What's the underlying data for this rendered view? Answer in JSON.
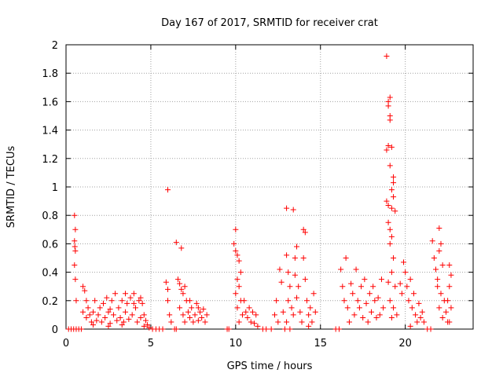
{
  "chart_data": {
    "type": "scatter",
    "title": "Day 167 of 2017, SRMTID for receiver crat",
    "xlabel": "GPS time / hours",
    "ylabel": "SRMTID / TECUs",
    "xlim": [
      0,
      24
    ],
    "ylim": [
      0,
      2
    ],
    "xticks": [
      0,
      5,
      10,
      15,
      20
    ],
    "xtick_labels": [
      "0",
      "5",
      "10",
      "15",
      "20"
    ],
    "yticks": [
      0,
      0.2,
      0.4,
      0.6,
      0.8,
      1,
      1.2,
      1.4,
      1.6,
      1.8,
      2
    ],
    "ytick_labels": [
      "0",
      "0.2",
      "0.4",
      "0.6",
      "0.8",
      "1",
      "1.2",
      "1.4",
      "1.6",
      "1.8",
      "2"
    ],
    "grid": true,
    "marker": "plus",
    "color": "#ff0000",
    "series": [
      {
        "name": "SRMTID",
        "points": [
          [
            0.15,
            0.0
          ],
          [
            0.3,
            0.0
          ],
          [
            0.45,
            0.0
          ],
          [
            0.6,
            0.0
          ],
          [
            0.75,
            0.0
          ],
          [
            0.9,
            0.0
          ],
          [
            0.5,
            0.8
          ],
          [
            0.55,
            0.7
          ],
          [
            0.5,
            0.62
          ],
          [
            0.52,
            0.58
          ],
          [
            0.55,
            0.55
          ],
          [
            0.5,
            0.45
          ],
          [
            0.55,
            0.35
          ],
          [
            0.6,
            0.2
          ],
          [
            1.0,
            0.3
          ],
          [
            1.1,
            0.27
          ],
          [
            1.2,
            0.2
          ],
          [
            1.0,
            0.12
          ],
          [
            1.2,
            0.08
          ],
          [
            1.4,
            0.1
          ],
          [
            1.5,
            0.05
          ],
          [
            1.6,
            0.12
          ],
          [
            1.8,
            0.06
          ],
          [
            1.9,
            0.1
          ],
          [
            2.0,
            0.15
          ],
          [
            2.1,
            0.05
          ],
          [
            2.2,
            0.18
          ],
          [
            2.3,
            0.08
          ],
          [
            2.4,
            0.22
          ],
          [
            2.5,
            0.12
          ],
          [
            2.6,
            0.04
          ],
          [
            2.7,
            0.2
          ],
          [
            2.8,
            0.1
          ],
          [
            2.9,
            0.25
          ],
          [
            3.0,
            0.06
          ],
          [
            3.1,
            0.15
          ],
          [
            3.2,
            0.08
          ],
          [
            3.3,
            0.2
          ],
          [
            3.4,
            0.05
          ],
          [
            3.5,
            0.12
          ],
          [
            3.6,
            0.18
          ],
          [
            3.7,
            0.07
          ],
          [
            3.8,
            0.22
          ],
          [
            3.9,
            0.1
          ],
          [
            4.0,
            0.25
          ],
          [
            4.1,
            0.15
          ],
          [
            4.2,
            0.05
          ],
          [
            4.3,
            0.2
          ],
          [
            4.4,
            0.08
          ],
          [
            4.5,
            0.18
          ],
          [
            4.6,
            0.1
          ],
          [
            4.7,
            0.06
          ],
          [
            4.8,
            0.03
          ],
          [
            4.9,
            0.01
          ],
          [
            1.3,
            0.15
          ],
          [
            1.7,
            0.2
          ],
          [
            2.6,
            0.14
          ],
          [
            3.5,
            0.25
          ],
          [
            4.0,
            0.18
          ],
          [
            4.4,
            0.22
          ],
          [
            1.6,
            0.03
          ],
          [
            2.5,
            0.02
          ],
          [
            3.3,
            0.03
          ],
          [
            4.6,
            0.02
          ],
          [
            5.1,
            0.0
          ],
          [
            5.3,
            0.0
          ],
          [
            5.5,
            0.0
          ],
          [
            5.7,
            0.0
          ],
          [
            6.0,
            0.98
          ],
          [
            5.9,
            0.33
          ],
          [
            6.0,
            0.28
          ],
          [
            6.0,
            0.2
          ],
          [
            6.1,
            0.1
          ],
          [
            6.2,
            0.05
          ],
          [
            6.4,
            0.0
          ],
          [
            6.5,
            0.0
          ],
          [
            6.5,
            0.61
          ],
          [
            6.8,
            0.57
          ],
          [
            6.6,
            0.35
          ],
          [
            6.7,
            0.32
          ],
          [
            6.8,
            0.28
          ],
          [
            6.9,
            0.25
          ],
          [
            7.0,
            0.3
          ],
          [
            7.1,
            0.2
          ],
          [
            6.7,
            0.15
          ],
          [
            6.9,
            0.1
          ],
          [
            7.0,
            0.05
          ],
          [
            7.2,
            0.12
          ],
          [
            7.3,
            0.08
          ],
          [
            7.4,
            0.15
          ],
          [
            7.5,
            0.05
          ],
          [
            7.6,
            0.1
          ],
          [
            7.7,
            0.18
          ],
          [
            7.8,
            0.06
          ],
          [
            7.9,
            0.12
          ],
          [
            8.0,
            0.08
          ],
          [
            8.1,
            0.14
          ],
          [
            8.2,
            0.05
          ],
          [
            8.3,
            0.1
          ],
          [
            7.3,
            0.2
          ],
          [
            7.8,
            0.15
          ],
          [
            9.5,
            0.0
          ],
          [
            9.6,
            0.0
          ],
          [
            10.0,
            0.7
          ],
          [
            9.9,
            0.6
          ],
          [
            10.0,
            0.55
          ],
          [
            10.1,
            0.52
          ],
          [
            10.2,
            0.48
          ],
          [
            10.3,
            0.4
          ],
          [
            10.1,
            0.35
          ],
          [
            10.2,
            0.3
          ],
          [
            10.0,
            0.25
          ],
          [
            10.3,
            0.2
          ],
          [
            10.1,
            0.15
          ],
          [
            10.4,
            0.1
          ],
          [
            10.2,
            0.05
          ],
          [
            10.5,
            0.2
          ],
          [
            10.6,
            0.12
          ],
          [
            10.7,
            0.08
          ],
          [
            10.8,
            0.15
          ],
          [
            10.9,
            0.05
          ],
          [
            11.0,
            0.12
          ],
          [
            11.1,
            0.04
          ],
          [
            11.2,
            0.1
          ],
          [
            11.3,
            0.02
          ],
          [
            11.6,
            0.0
          ],
          [
            11.8,
            0.0
          ],
          [
            12.1,
            0.0
          ],
          [
            12.3,
            0.1
          ],
          [
            12.4,
            0.2
          ],
          [
            12.6,
            0.42
          ],
          [
            12.7,
            0.33
          ],
          [
            12.5,
            0.05
          ],
          [
            12.8,
            0.12
          ],
          [
            13.0,
            0.85
          ],
          [
            13.4,
            0.84
          ],
          [
            13.0,
            0.52
          ],
          [
            13.1,
            0.4
          ],
          [
            13.2,
            0.3
          ],
          [
            13.1,
            0.2
          ],
          [
            13.3,
            0.15
          ],
          [
            13.0,
            0.05
          ],
          [
            13.4,
            0.1
          ],
          [
            13.5,
            0.38
          ],
          [
            13.6,
            0.58
          ],
          [
            13.5,
            0.5
          ],
          [
            13.7,
            0.3
          ],
          [
            13.6,
            0.22
          ],
          [
            13.8,
            0.12
          ],
          [
            13.9,
            0.05
          ],
          [
            14.0,
            0.7
          ],
          [
            14.1,
            0.68
          ],
          [
            14.0,
            0.5
          ],
          [
            14.1,
            0.35
          ],
          [
            14.2,
            0.2
          ],
          [
            14.3,
            0.1
          ],
          [
            14.4,
            0.15
          ],
          [
            14.5,
            0.05
          ],
          [
            14.6,
            0.25
          ],
          [
            14.7,
            0.12
          ],
          [
            14.3,
            0.02
          ],
          [
            13.2,
            0.0
          ],
          [
            12.9,
            0.0
          ],
          [
            15.9,
            0.0
          ],
          [
            16.1,
            0.0
          ],
          [
            16.2,
            0.42
          ],
          [
            16.3,
            0.3
          ],
          [
            16.5,
            0.5
          ],
          [
            16.4,
            0.2
          ],
          [
            16.6,
            0.15
          ],
          [
            16.7,
            0.05
          ],
          [
            16.8,
            0.32
          ],
          [
            16.9,
            0.25
          ],
          [
            17.0,
            0.1
          ],
          [
            17.1,
            0.42
          ],
          [
            17.2,
            0.2
          ],
          [
            17.3,
            0.15
          ],
          [
            17.4,
            0.3
          ],
          [
            17.5,
            0.08
          ],
          [
            17.6,
            0.35
          ],
          [
            17.7,
            0.18
          ],
          [
            17.8,
            0.05
          ],
          [
            17.9,
            0.25
          ],
          [
            18.0,
            0.12
          ],
          [
            18.1,
            0.3
          ],
          [
            18.2,
            0.2
          ],
          [
            18.3,
            0.08
          ],
          [
            18.4,
            0.22
          ],
          [
            18.5,
            0.1
          ],
          [
            18.6,
            0.35
          ],
          [
            18.7,
            0.15
          ],
          [
            18.9,
            1.92
          ],
          [
            18.9,
            1.26
          ],
          [
            19.0,
            1.6
          ],
          [
            19.1,
            1.63
          ],
          [
            19.0,
            1.57
          ],
          [
            19.1,
            1.5
          ],
          [
            19.1,
            1.47
          ],
          [
            19.0,
            1.29
          ],
          [
            19.2,
            1.28
          ],
          [
            19.1,
            1.15
          ],
          [
            19.3,
            1.07
          ],
          [
            19.3,
            1.03
          ],
          [
            19.2,
            0.98
          ],
          [
            19.3,
            0.93
          ],
          [
            18.9,
            0.9
          ],
          [
            19.0,
            0.87
          ],
          [
            19.2,
            0.85
          ],
          [
            19.4,
            0.83
          ],
          [
            19.0,
            0.75
          ],
          [
            19.1,
            0.7
          ],
          [
            19.2,
            0.65
          ],
          [
            19.1,
            0.6
          ],
          [
            19.3,
            0.5
          ],
          [
            19.2,
            0.4
          ],
          [
            19.0,
            0.33
          ],
          [
            19.4,
            0.3
          ],
          [
            19.1,
            0.2
          ],
          [
            19.3,
            0.15
          ],
          [
            19.2,
            0.08
          ],
          [
            19.5,
            0.1
          ],
          [
            19.7,
            0.32
          ],
          [
            19.8,
            0.25
          ],
          [
            19.9,
            0.47
          ],
          [
            20.0,
            0.4
          ],
          [
            20.1,
            0.3
          ],
          [
            20.2,
            0.2
          ],
          [
            20.3,
            0.35
          ],
          [
            20.4,
            0.15
          ],
          [
            20.5,
            0.25
          ],
          [
            20.6,
            0.1
          ],
          [
            20.7,
            0.05
          ],
          [
            20.8,
            0.18
          ],
          [
            20.9,
            0.08
          ],
          [
            21.0,
            0.12
          ],
          [
            21.1,
            0.05
          ],
          [
            20.3,
            0.02
          ],
          [
            21.3,
            0.0
          ],
          [
            21.5,
            0.0
          ],
          [
            21.6,
            0.62
          ],
          [
            21.7,
            0.5
          ],
          [
            21.8,
            0.42
          ],
          [
            21.9,
            0.35
          ],
          [
            22.0,
            0.71
          ],
          [
            22.1,
            0.6
          ],
          [
            22.0,
            0.55
          ],
          [
            22.2,
            0.45
          ],
          [
            21.9,
            0.3
          ],
          [
            22.1,
            0.25
          ],
          [
            22.0,
            0.15
          ],
          [
            22.2,
            0.08
          ],
          [
            22.3,
            0.2
          ],
          [
            22.4,
            0.12
          ],
          [
            22.5,
            0.05
          ],
          [
            22.6,
            0.45
          ],
          [
            22.7,
            0.38
          ],
          [
            22.6,
            0.3
          ],
          [
            22.5,
            0.2
          ],
          [
            22.7,
            0.15
          ],
          [
            22.6,
            0.05
          ]
        ]
      }
    ]
  }
}
